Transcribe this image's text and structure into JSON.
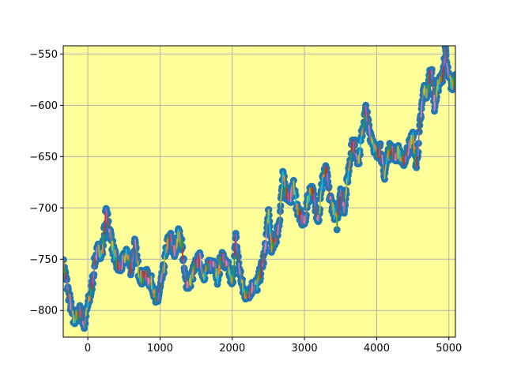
{
  "chart_data": {
    "type": "scatter",
    "title": "",
    "xlabel": "",
    "ylabel": "",
    "xlim": [
      -340,
      5090
    ],
    "ylim": [
      -826,
      -542
    ],
    "x_ticks": [
      {
        "value": 0,
        "label": "0"
      },
      {
        "value": 1000,
        "label": "1000"
      },
      {
        "value": 2000,
        "label": "2000"
      },
      {
        "value": 3000,
        "label": "3000"
      },
      {
        "value": 4000,
        "label": "4000"
      },
      {
        "value": 5000,
        "label": "5000"
      }
    ],
    "y_ticks": [
      {
        "value": -550,
        "label": "−550"
      },
      {
        "value": -600,
        "label": "−600"
      },
      {
        "value": -650,
        "label": "−650"
      },
      {
        "value": -700,
        "label": "−700"
      },
      {
        "value": -750,
        "label": "−750"
      },
      {
        "value": -800,
        "label": "−800"
      }
    ],
    "grid": true,
    "background_color": "#ffff99",
    "marker_color": "#1f77b4",
    "segment_colors": [
      "#ff7f0e",
      "#2ca02c",
      "#d62728",
      "#9467bd",
      "#8c564b",
      "#e377c2",
      "#7f7f7f",
      "#bcbd22",
      "#17becf"
    ],
    "series": [
      {
        "type": "random-walk",
        "x": [
          -340,
          -300,
          -250,
          -200,
          -150,
          -100,
          -50,
          0,
          50,
          100,
          150,
          200,
          250,
          300,
          350,
          400,
          450,
          500,
          550,
          600,
          650,
          700,
          750,
          800,
          850,
          900,
          950,
          1000,
          1050,
          1100,
          1150,
          1200,
          1250,
          1300,
          1350,
          1400,
          1450,
          1500,
          1550,
          1600,
          1650,
          1700,
          1750,
          1800,
          1850,
          1900,
          1950,
          2000,
          2050,
          2100,
          2150,
          2200,
          2250,
          2300,
          2350,
          2400,
          2450,
          2500,
          2550,
          2600,
          2650,
          2700,
          2750,
          2800,
          2850,
          2900,
          2950,
          3000,
          3050,
          3100,
          3150,
          3200,
          3250,
          3300,
          3350,
          3400,
          3450,
          3500,
          3550,
          3600,
          3650,
          3700,
          3750,
          3800,
          3850,
          3900,
          3950,
          4000,
          4050,
          4100,
          4150,
          4200,
          4250,
          4300,
          4350,
          4400,
          4450,
          4500,
          4550,
          4600,
          4650,
          4700,
          4750,
          4800,
          4850,
          4900,
          4950,
          5000,
          5050,
          5090
        ],
        "y": [
          -755,
          -770,
          -790,
          -810,
          -805,
          -800,
          -815,
          -795,
          -780,
          -750,
          -740,
          -745,
          -705,
          -720,
          -740,
          -755,
          -760,
          -750,
          -745,
          -760,
          -735,
          -760,
          -770,
          -765,
          -770,
          -775,
          -795,
          -780,
          -760,
          -735,
          -730,
          -745,
          -725,
          -735,
          -770,
          -775,
          -765,
          -755,
          -750,
          -765,
          -760,
          -755,
          -750,
          -770,
          -745,
          -755,
          -760,
          -775,
          -730,
          -760,
          -780,
          -785,
          -780,
          -775,
          -775,
          -760,
          -745,
          -705,
          -740,
          -730,
          -715,
          -670,
          -685,
          -690,
          -680,
          -700,
          -710,
          -715,
          -690,
          -680,
          -700,
          -710,
          -670,
          -665,
          -690,
          -700,
          -715,
          -680,
          -700,
          -670,
          -640,
          -640,
          -655,
          -625,
          -605,
          -625,
          -635,
          -650,
          -640,
          -670,
          -650,
          -640,
          -650,
          -645,
          -655,
          -650,
          -640,
          -630,
          -660,
          -620,
          -585,
          -590,
          -560,
          -600,
          -580,
          -575,
          -550,
          -575,
          -580,
          -570
        ]
      }
    ]
  }
}
